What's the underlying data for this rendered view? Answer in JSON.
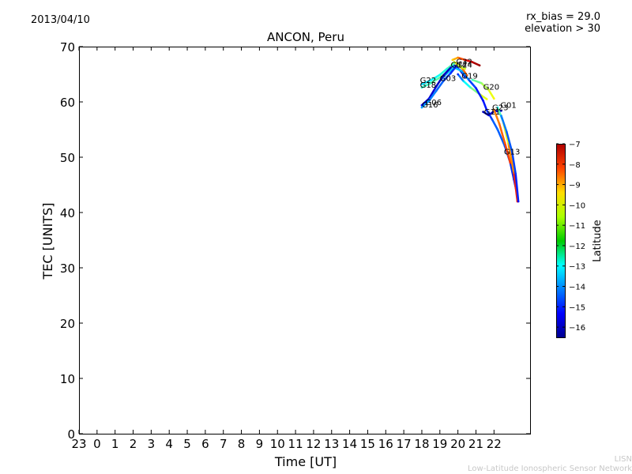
{
  "header": {
    "date": "2013/04/10",
    "rx_bias": "rx_bias = 29.0",
    "elevation": "elevation > 30"
  },
  "watermark": {
    "line1": "LISN",
    "line2": "Low-Latitude Ionospheric Sensor Network"
  },
  "chart_data": {
    "type": "scatter",
    "title": "ANCON, Peru",
    "xlabel": "Time [UT]",
    "ylabel": "TEC [UNITS]",
    "xlim": [
      -1,
      24
    ],
    "ylim": [
      0,
      70
    ],
    "x_ticks": [
      {
        "value": -1,
        "label": "23"
      },
      {
        "value": 0,
        "label": "0"
      },
      {
        "value": 1,
        "label": "1"
      },
      {
        "value": 2,
        "label": "2"
      },
      {
        "value": 3,
        "label": "3"
      },
      {
        "value": 4,
        "label": "4"
      },
      {
        "value": 5,
        "label": "5"
      },
      {
        "value": 6,
        "label": "6"
      },
      {
        "value": 7,
        "label": "7"
      },
      {
        "value": 8,
        "label": "8"
      },
      {
        "value": 9,
        "label": "9"
      },
      {
        "value": 10,
        "label": "10"
      },
      {
        "value": 11,
        "label": "11"
      },
      {
        "value": 12,
        "label": "12"
      },
      {
        "value": 13,
        "label": "13"
      },
      {
        "value": 14,
        "label": "14"
      },
      {
        "value": 15,
        "label": "15"
      },
      {
        "value": 16,
        "label": "16"
      },
      {
        "value": 17,
        "label": "17"
      },
      {
        "value": 18,
        "label": "18"
      },
      {
        "value": 19,
        "label": "19"
      },
      {
        "value": 20,
        "label": "20"
      },
      {
        "value": 21,
        "label": "21"
      },
      {
        "value": 22,
        "label": "22"
      }
    ],
    "y_ticks": [
      0,
      10,
      20,
      30,
      40,
      50,
      60,
      70
    ],
    "grid": false,
    "colorbar": {
      "label": "Latitude",
      "min": -16.5,
      "max": -7,
      "ticks": [
        -7,
        -8,
        -9,
        -10,
        -11,
        -12,
        -13,
        -14,
        -15,
        -16
      ],
      "colormap": "jet"
    },
    "series": [
      {
        "name": "G32",
        "points": [
          [
            19.7,
            67.6,
            -10.2
          ],
          [
            20.0,
            68.0,
            -9.5
          ],
          [
            20.4,
            67.6,
            -8.3
          ],
          [
            20.8,
            67.2,
            -7.6
          ],
          [
            21.2,
            66.6,
            -7.2
          ]
        ]
      },
      {
        "name": "G24",
        "points": [
          [
            19.6,
            66.5,
            -11.5
          ],
          [
            19.8,
            67.2,
            -10.8
          ],
          [
            20.0,
            66.8,
            -10.0
          ],
          [
            20.3,
            65.8,
            -9.4
          ],
          [
            20.5,
            64.8,
            -9.0
          ]
        ]
      },
      {
        "name": "G14",
        "points": [
          [
            19.5,
            66.2,
            -14.0
          ],
          [
            19.8,
            66.5,
            -14.8
          ],
          [
            20.1,
            65.8,
            -15.6
          ],
          [
            20.4,
            64.5,
            -16.0
          ]
        ]
      },
      {
        "name": "G19",
        "points": [
          [
            20.0,
            65.0,
            -15.0
          ],
          [
            20.3,
            63.8,
            -13.5
          ],
          [
            20.7,
            62.6,
            -12.3
          ],
          [
            21.2,
            61.4,
            -11.2
          ],
          [
            21.6,
            60.5,
            -10.6
          ]
        ]
      },
      {
        "name": "G20",
        "points": [
          [
            20.8,
            64.0,
            -12.4
          ],
          [
            21.3,
            63.4,
            -11.6
          ],
          [
            21.7,
            62.2,
            -11.0
          ],
          [
            22.0,
            60.6,
            -10.5
          ]
        ]
      },
      {
        "name": "G22",
        "points": [
          [
            18.0,
            62.6,
            -12.5
          ],
          [
            18.5,
            63.4,
            -12.3
          ],
          [
            19.0,
            64.4,
            -12.0
          ],
          [
            19.5,
            65.6,
            -11.6
          ],
          [
            20.0,
            66.6,
            -11.3
          ],
          [
            20.4,
            66.0,
            -11.0
          ]
        ]
      },
      {
        "name": "G18",
        "points": [
          [
            18.0,
            63.2,
            -13.3
          ],
          [
            18.5,
            63.9,
            -13.0
          ],
          [
            19.0,
            64.9,
            -12.7
          ],
          [
            19.4,
            66.0,
            -12.5
          ],
          [
            19.8,
            67.0,
            -12.0
          ]
        ]
      },
      {
        "name": "G03",
        "points": [
          [
            19.0,
            63.8,
            -14.0
          ],
          [
            19.4,
            65.2,
            -13.6
          ],
          [
            19.8,
            66.2,
            -13.2
          ],
          [
            20.2,
            65.6,
            -13.8
          ],
          [
            20.6,
            64.0,
            -14.4
          ],
          [
            21.0,
            62.5,
            -15.0
          ],
          [
            21.4,
            60.2,
            -15.2
          ],
          [
            21.6,
            58.5,
            -15.0
          ],
          [
            21.9,
            56.8,
            -14.6
          ],
          [
            22.2,
            55.0,
            -14.3
          ],
          [
            22.6,
            52.0,
            -14.6
          ],
          [
            22.9,
            49.0,
            -14.8
          ],
          [
            23.1,
            46.0,
            -15.0
          ],
          [
            23.3,
            43.0,
            -15.2
          ]
        ]
      },
      {
        "name": "G06",
        "points": [
          [
            18.0,
            59.4,
            -15.2
          ],
          [
            18.4,
            60.6,
            -15.6
          ],
          [
            18.8,
            62.8,
            -15.8
          ],
          [
            19.2,
            64.8,
            -16.0
          ],
          [
            19.6,
            66.2,
            -15.8
          ]
        ]
      },
      {
        "name": "G16",
        "points": [
          [
            18.0,
            59.0,
            -13.8
          ],
          [
            18.4,
            60.2,
            -14.0
          ],
          [
            18.8,
            62.0,
            -14.2
          ],
          [
            19.2,
            63.8,
            -14.6
          ],
          [
            19.6,
            65.2,
            -14.8
          ],
          [
            19.9,
            66.4,
            -15.0
          ]
        ]
      },
      {
        "name": "G11",
        "points": [
          [
            21.4,
            58.2,
            -16.0
          ],
          [
            21.7,
            57.6,
            -15.8
          ],
          [
            22.0,
            58.3,
            -15.7
          ],
          [
            22.4,
            58.4,
            -15.9
          ]
        ]
      },
      {
        "name": "G23",
        "points": [
          [
            22.0,
            58.6,
            -9.5
          ],
          [
            22.3,
            56.0,
            -9.2
          ],
          [
            22.6,
            52.6,
            -9.0
          ],
          [
            22.9,
            49.0,
            -8.6
          ]
        ]
      },
      {
        "name": "G01",
        "points": [
          [
            22.2,
            59.0,
            -13.0
          ],
          [
            22.5,
            56.5,
            -11.5
          ],
          [
            22.8,
            52.4,
            -10.0
          ],
          [
            23.1,
            47.2,
            -9.0
          ],
          [
            23.3,
            42.0,
            -8.0
          ]
        ]
      },
      {
        "name": "G13",
        "points": [
          [
            22.4,
            57.5,
            -14.0
          ],
          [
            22.7,
            54.6,
            -14.4
          ],
          [
            23.0,
            51.0,
            -14.6
          ],
          [
            23.2,
            47.0,
            -14.8
          ],
          [
            23.35,
            42.0,
            -15.2
          ]
        ]
      }
    ],
    "labels": [
      {
        "text": "G32",
        "x": 19.9,
        "y": 66.8
      },
      {
        "text": "G24",
        "x": 19.9,
        "y": 66.2
      },
      {
        "text": "G14",
        "x": 19.6,
        "y": 66.2
      },
      {
        "text": "G19",
        "x": 20.2,
        "y": 64.2
      },
      {
        "text": "G20",
        "x": 21.4,
        "y": 62.2
      },
      {
        "text": "G22",
        "x": 17.9,
        "y": 63.4
      },
      {
        "text": "G18",
        "x": 17.9,
        "y": 62.6
      },
      {
        "text": "G03",
        "x": 19.0,
        "y": 63.8
      },
      {
        "text": "G06",
        "x": 18.2,
        "y": 59.4
      },
      {
        "text": "G16",
        "x": 18.0,
        "y": 59.0
      },
      {
        "text": "G11",
        "x": 21.45,
        "y": 57.7
      },
      {
        "text": "G23",
        "x": 21.9,
        "y": 58.5
      },
      {
        "text": "G01",
        "x": 22.35,
        "y": 58.9
      },
      {
        "text": "G13",
        "x": 22.55,
        "y": 50.5
      }
    ]
  }
}
